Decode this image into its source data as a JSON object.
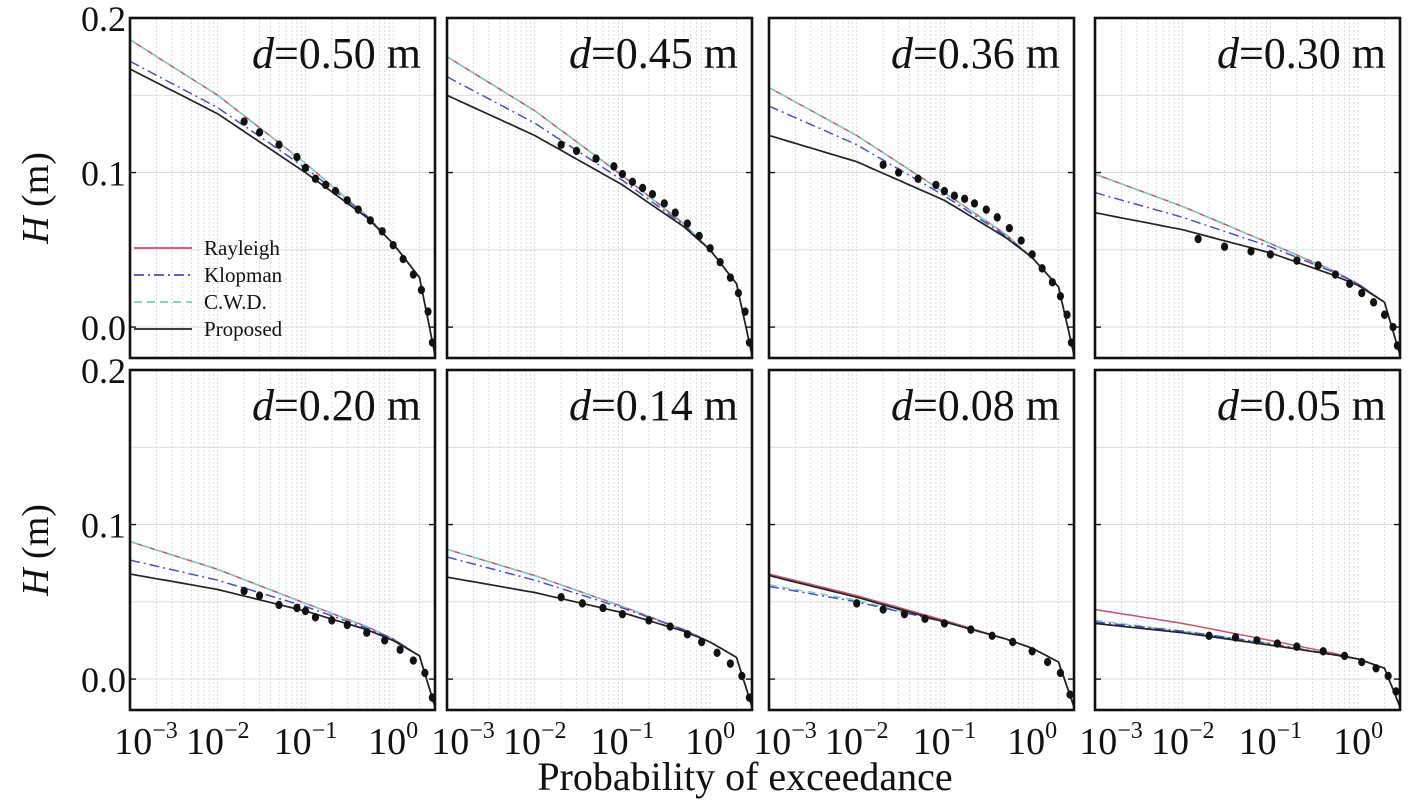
{
  "figure": {
    "xlabel": "Probability of exceedance",
    "ylabel": "H (m)",
    "ylabel_symbol": "H",
    "ylabel_unit": " (m)"
  },
  "legend": {
    "entries": [
      {
        "label": "Rayleigh",
        "color": "#cc4f6a",
        "dash": "solid"
      },
      {
        "label": "Klopman",
        "color": "#4b4bd1",
        "dash": "dashdot"
      },
      {
        "label": "C.W.D.",
        "color": "#6fd6c2",
        "dash": "dashed"
      },
      {
        "label": "Proposed",
        "color": "#222222",
        "dash": "solid"
      }
    ]
  },
  "chart_data": [
    {
      "type": "line",
      "title": "d=0.50 m",
      "title_var": "d",
      "title_value": "=0.50 m",
      "xscale": "log",
      "xlim": [
        0.001,
        3
      ],
      "ylim": [
        -0.02,
        0.2
      ],
      "yticks": [
        "0.0",
        "0.1",
        "0.2"
      ],
      "xticks": [
        "10−3",
        "10−2",
        "10−1",
        "100"
      ],
      "grid": true,
      "legend_placement": "lower-left",
      "series": [
        {
          "name": "Rayleigh",
          "x": [
            0.001,
            0.01,
            0.1,
            0.5,
            1,
            2,
            3
          ],
          "y": [
            0.186,
            0.15,
            0.106,
            0.072,
            0.054,
            0.032,
            -0.018
          ]
        },
        {
          "name": "Klopman",
          "x": [
            0.001,
            0.01,
            0.1,
            0.5,
            1,
            2,
            3
          ],
          "y": [
            0.172,
            0.142,
            0.103,
            0.072,
            0.054,
            0.032,
            -0.018
          ]
        },
        {
          "name": "C.W.D.",
          "x": [
            0.001,
            0.01,
            0.1,
            0.5,
            1,
            2,
            3
          ],
          "y": [
            0.186,
            0.15,
            0.106,
            0.072,
            0.054,
            0.032,
            -0.018
          ]
        },
        {
          "name": "Proposed",
          "x": [
            0.001,
            0.01,
            0.1,
            0.5,
            1,
            2,
            3
          ],
          "y": [
            0.167,
            0.138,
            0.1,
            0.071,
            0.054,
            0.032,
            -0.018
          ]
        }
      ],
      "observed": {
        "x": [
          0.02,
          0.03,
          0.05,
          0.08,
          0.1,
          0.13,
          0.17,
          0.22,
          0.3,
          0.4,
          0.55,
          0.75,
          1.0,
          1.3,
          1.7,
          2.1,
          2.5,
          2.8
        ],
        "y": [
          0.133,
          0.126,
          0.118,
          0.11,
          0.103,
          0.096,
          0.092,
          0.088,
          0.082,
          0.076,
          0.069,
          0.062,
          0.053,
          0.044,
          0.034,
          0.024,
          0.01,
          -0.01
        ]
      }
    },
    {
      "type": "line",
      "title": "d=0.45 m",
      "title_var": "d",
      "title_value": "=0.45 m",
      "xscale": "log",
      "xlim": [
        0.001,
        3
      ],
      "ylim": [
        -0.02,
        0.2
      ],
      "grid": true,
      "series": [
        {
          "name": "Rayleigh",
          "x": [
            0.001,
            0.01,
            0.1,
            0.5,
            1,
            2,
            3
          ],
          "y": [
            0.175,
            0.14,
            0.098,
            0.067,
            0.05,
            0.028,
            -0.018
          ]
        },
        {
          "name": "Klopman",
          "x": [
            0.001,
            0.01,
            0.1,
            0.5,
            1,
            2,
            3
          ],
          "y": [
            0.162,
            0.132,
            0.095,
            0.066,
            0.05,
            0.028,
            -0.018
          ]
        },
        {
          "name": "C.W.D.",
          "x": [
            0.001,
            0.01,
            0.1,
            0.5,
            1,
            2,
            3
          ],
          "y": [
            0.175,
            0.14,
            0.098,
            0.067,
            0.05,
            0.028,
            -0.018
          ]
        },
        {
          "name": "Proposed",
          "x": [
            0.001,
            0.01,
            0.1,
            0.5,
            1,
            2,
            3
          ],
          "y": [
            0.15,
            0.124,
            0.092,
            0.065,
            0.05,
            0.028,
            -0.018
          ]
        }
      ],
      "observed": {
        "x": [
          0.02,
          0.03,
          0.05,
          0.08,
          0.1,
          0.13,
          0.17,
          0.22,
          0.3,
          0.4,
          0.55,
          0.75,
          1.0,
          1.3,
          1.7,
          2.1,
          2.5,
          2.8
        ],
        "y": [
          0.118,
          0.114,
          0.109,
          0.104,
          0.099,
          0.094,
          0.09,
          0.086,
          0.08,
          0.074,
          0.067,
          0.059,
          0.051,
          0.042,
          0.032,
          0.022,
          0.01,
          -0.01
        ]
      }
    },
    {
      "type": "line",
      "title": "d=0.36 m",
      "title_var": "d",
      "title_value": "=0.36 m",
      "xscale": "log",
      "xlim": [
        0.001,
        3
      ],
      "ylim": [
        -0.02,
        0.2
      ],
      "grid": true,
      "series": [
        {
          "name": "Rayleigh",
          "x": [
            0.001,
            0.01,
            0.1,
            0.5,
            1,
            2,
            3
          ],
          "y": [
            0.155,
            0.124,
            0.087,
            0.06,
            0.045,
            0.026,
            -0.018
          ]
        },
        {
          "name": "Klopman",
          "x": [
            0.001,
            0.01,
            0.1,
            0.5,
            1,
            2,
            3
          ],
          "y": [
            0.143,
            0.118,
            0.085,
            0.059,
            0.045,
            0.026,
            -0.018
          ]
        },
        {
          "name": "C.W.D.",
          "x": [
            0.001,
            0.01,
            0.1,
            0.5,
            1,
            2,
            3
          ],
          "y": [
            0.155,
            0.124,
            0.087,
            0.06,
            0.045,
            0.026,
            -0.018
          ]
        },
        {
          "name": "Proposed",
          "x": [
            0.001,
            0.01,
            0.1,
            0.5,
            1,
            2,
            3
          ],
          "y": [
            0.124,
            0.107,
            0.082,
            0.058,
            0.045,
            0.026,
            -0.018
          ]
        }
      ],
      "observed": {
        "x": [
          0.02,
          0.03,
          0.05,
          0.08,
          0.1,
          0.13,
          0.17,
          0.22,
          0.3,
          0.4,
          0.55,
          0.75,
          1.0,
          1.3,
          1.7,
          2.1,
          2.5,
          2.8
        ],
        "y": [
          0.105,
          0.1,
          0.096,
          0.092,
          0.088,
          0.085,
          0.083,
          0.08,
          0.076,
          0.071,
          0.064,
          0.056,
          0.047,
          0.038,
          0.029,
          0.02,
          0.008,
          -0.01
        ]
      }
    },
    {
      "type": "line",
      "title": "d=0.30 m",
      "title_var": "d",
      "title_value": "=0.30 m",
      "xscale": "log",
      "xlim": [
        0.001,
        3
      ],
      "ylim": [
        -0.02,
        0.2
      ],
      "grid": true,
      "series": [
        {
          "name": "Rayleigh",
          "x": [
            0.001,
            0.01,
            0.1,
            0.5,
            1,
            2,
            3
          ],
          "y": [
            0.099,
            0.078,
            0.054,
            0.037,
            0.028,
            0.016,
            -0.018
          ]
        },
        {
          "name": "Klopman",
          "x": [
            0.001,
            0.01,
            0.1,
            0.5,
            1,
            2,
            3
          ],
          "y": [
            0.087,
            0.071,
            0.052,
            0.036,
            0.028,
            0.016,
            -0.018
          ]
        },
        {
          "name": "C.W.D.",
          "x": [
            0.001,
            0.01,
            0.1,
            0.5,
            1,
            2,
            3
          ],
          "y": [
            0.099,
            0.078,
            0.054,
            0.037,
            0.028,
            0.016,
            -0.018
          ]
        },
        {
          "name": "Proposed",
          "x": [
            0.001,
            0.01,
            0.1,
            0.5,
            1,
            2,
            3
          ],
          "y": [
            0.074,
            0.063,
            0.048,
            0.034,
            0.027,
            0.016,
            -0.018
          ]
        }
      ],
      "observed": {
        "x": [
          0.015,
          0.03,
          0.06,
          0.1,
          0.2,
          0.35,
          0.55,
          0.8,
          1.1,
          1.5,
          2.0,
          2.5,
          2.8
        ],
        "y": [
          0.057,
          0.052,
          0.049,
          0.047,
          0.043,
          0.04,
          0.034,
          0.028,
          0.022,
          0.016,
          0.008,
          0.0,
          -0.012
        ]
      }
    },
    {
      "type": "line",
      "title": "d=0.20 m",
      "title_var": "d",
      "title_value": "=0.20 m",
      "xscale": "log",
      "xlim": [
        0.001,
        3
      ],
      "ylim": [
        -0.02,
        0.2
      ],
      "grid": true,
      "series": [
        {
          "name": "Rayleigh",
          "x": [
            0.001,
            0.01,
            0.1,
            0.5,
            1,
            2,
            3
          ],
          "y": [
            0.089,
            0.071,
            0.049,
            0.034,
            0.026,
            0.015,
            -0.018
          ]
        },
        {
          "name": "Klopman",
          "x": [
            0.001,
            0.01,
            0.1,
            0.5,
            1,
            2,
            3
          ],
          "y": [
            0.077,
            0.064,
            0.047,
            0.033,
            0.026,
            0.015,
            -0.018
          ]
        },
        {
          "name": "C.W.D.",
          "x": [
            0.001,
            0.01,
            0.1,
            0.5,
            1,
            2,
            3
          ],
          "y": [
            0.089,
            0.071,
            0.049,
            0.034,
            0.026,
            0.015,
            -0.018
          ]
        },
        {
          "name": "Proposed",
          "x": [
            0.001,
            0.01,
            0.1,
            0.5,
            1,
            2,
            3
          ],
          "y": [
            0.068,
            0.058,
            0.044,
            0.032,
            0.025,
            0.015,
            -0.018
          ]
        }
      ],
      "observed": {
        "x": [
          0.02,
          0.03,
          0.05,
          0.08,
          0.1,
          0.13,
          0.2,
          0.3,
          0.5,
          0.8,
          1.2,
          1.7,
          2.3,
          2.8
        ],
        "y": [
          0.057,
          0.054,
          0.048,
          0.046,
          0.044,
          0.04,
          0.038,
          0.035,
          0.03,
          0.025,
          0.019,
          0.012,
          0.004,
          -0.012
        ]
      }
    },
    {
      "type": "line",
      "title": "d=0.14 m",
      "title_var": "d",
      "title_value": "=0.14 m",
      "xscale": "log",
      "xlim": [
        0.001,
        3
      ],
      "ylim": [
        -0.02,
        0.2
      ],
      "grid": true,
      "series": [
        {
          "name": "Rayleigh",
          "x": [
            0.001,
            0.01,
            0.1,
            0.5,
            1,
            2,
            3
          ],
          "y": [
            0.084,
            0.067,
            0.047,
            0.032,
            0.024,
            0.014,
            -0.018
          ]
        },
        {
          "name": "Klopman",
          "x": [
            0.001,
            0.01,
            0.1,
            0.5,
            1,
            2,
            3
          ],
          "y": [
            0.079,
            0.064,
            0.046,
            0.032,
            0.024,
            0.014,
            -0.018
          ]
        },
        {
          "name": "C.W.D.",
          "x": [
            0.001,
            0.01,
            0.1,
            0.5,
            1,
            2,
            3
          ],
          "y": [
            0.084,
            0.067,
            0.047,
            0.032,
            0.024,
            0.014,
            -0.018
          ]
        },
        {
          "name": "Proposed",
          "x": [
            0.001,
            0.01,
            0.1,
            0.5,
            1,
            2,
            3
          ],
          "y": [
            0.066,
            0.056,
            0.043,
            0.031,
            0.024,
            0.014,
            -0.018
          ]
        }
      ],
      "observed": {
        "x": [
          0.02,
          0.035,
          0.06,
          0.1,
          0.2,
          0.35,
          0.55,
          0.8,
          1.2,
          1.7,
          2.3,
          2.8
        ],
        "y": [
          0.053,
          0.049,
          0.046,
          0.042,
          0.038,
          0.034,
          0.029,
          0.024,
          0.017,
          0.01,
          0.002,
          -0.012
        ]
      }
    },
    {
      "type": "line",
      "title": "d=0.08 m",
      "title_var": "d",
      "title_value": "=0.08 m",
      "xscale": "log",
      "xlim": [
        0.001,
        3
      ],
      "ylim": [
        -0.02,
        0.2
      ],
      "grid": true,
      "series": [
        {
          "name": "Rayleigh",
          "x": [
            0.001,
            0.01,
            0.1,
            0.5,
            1,
            2,
            3
          ],
          "y": [
            0.068,
            0.054,
            0.038,
            0.026,
            0.02,
            0.011,
            -0.018
          ]
        },
        {
          "name": "Klopman",
          "x": [
            0.001,
            0.01,
            0.1,
            0.5,
            1,
            2,
            3
          ],
          "y": [
            0.06,
            0.05,
            0.037,
            0.026,
            0.02,
            0.011,
            -0.018
          ]
        },
        {
          "name": "C.W.D.",
          "x": [
            0.001,
            0.01,
            0.1,
            0.5,
            1,
            2,
            3
          ],
          "y": [
            0.061,
            0.051,
            0.037,
            0.026,
            0.02,
            0.011,
            -0.018
          ]
        },
        {
          "name": "Proposed",
          "x": [
            0.001,
            0.01,
            0.1,
            0.5,
            1,
            2,
            3
          ],
          "y": [
            0.067,
            0.053,
            0.037,
            0.026,
            0.02,
            0.011,
            -0.018
          ]
        }
      ],
      "observed": {
        "x": [
          0.01,
          0.02,
          0.035,
          0.06,
          0.1,
          0.2,
          0.35,
          0.6,
          1.0,
          1.5,
          2.1,
          2.7
        ],
        "y": [
          0.049,
          0.045,
          0.042,
          0.039,
          0.036,
          0.032,
          0.028,
          0.024,
          0.018,
          0.011,
          0.004,
          -0.01
        ]
      }
    },
    {
      "type": "line",
      "title": "d=0.05 m",
      "title_var": "d",
      "title_value": "=0.05 m",
      "xscale": "log",
      "xlim": [
        0.001,
        3
      ],
      "ylim": [
        -0.02,
        0.2
      ],
      "grid": true,
      "series": [
        {
          "name": "Rayleigh",
          "x": [
            0.001,
            0.01,
            0.1,
            0.5,
            1,
            2,
            3
          ],
          "y": [
            0.045,
            0.036,
            0.025,
            0.017,
            0.013,
            0.007,
            -0.018
          ]
        },
        {
          "name": "Klopman",
          "x": [
            0.001,
            0.01,
            0.1,
            0.5,
            1,
            2,
            3
          ],
          "y": [
            0.037,
            0.031,
            0.023,
            0.016,
            0.013,
            0.007,
            -0.018
          ]
        },
        {
          "name": "C.W.D.",
          "x": [
            0.001,
            0.01,
            0.1,
            0.5,
            1,
            2,
            3
          ],
          "y": [
            0.038,
            0.031,
            0.023,
            0.016,
            0.013,
            0.007,
            -0.018
          ]
        },
        {
          "name": "Proposed",
          "x": [
            0.001,
            0.01,
            0.1,
            0.5,
            1,
            2,
            3
          ],
          "y": [
            0.036,
            0.03,
            0.022,
            0.016,
            0.013,
            0.007,
            -0.018
          ]
        }
      ],
      "observed": {
        "x": [
          0.02,
          0.04,
          0.07,
          0.12,
          0.2,
          0.4,
          0.7,
          1.1,
          1.6,
          2.2,
          2.7
        ],
        "y": [
          0.028,
          0.027,
          0.025,
          0.023,
          0.021,
          0.018,
          0.015,
          0.011,
          0.007,
          0.002,
          -0.008
        ]
      }
    }
  ]
}
